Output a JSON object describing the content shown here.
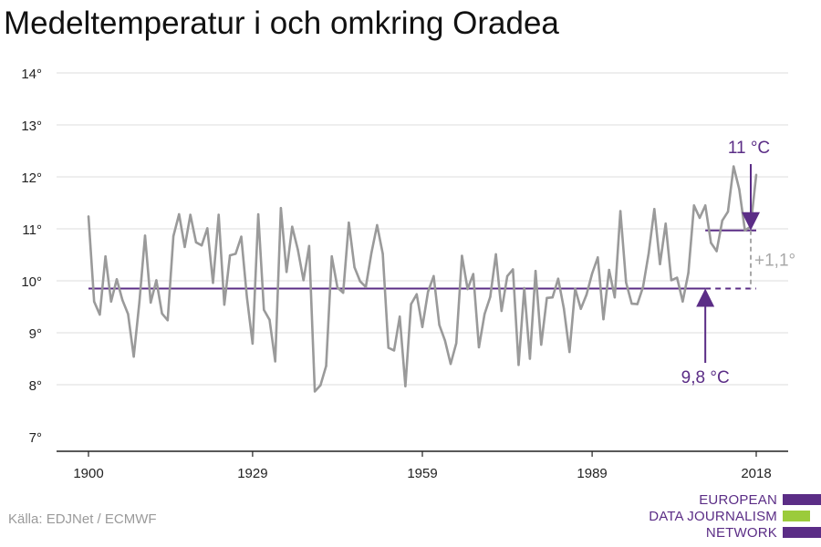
{
  "title": "Medeltemperatur i och omkring Oradea",
  "source": "Källa: EDJNet / ECMWF",
  "logo": {
    "lines": [
      "EUROPEAN",
      "DATA JOURNALISM",
      "NETWORK"
    ]
  },
  "colors": {
    "series": "#9a9a9a",
    "accent": "#5b2d86",
    "green": "#9bcb3b",
    "grid": "#dddddd"
  },
  "chart_data": {
    "type": "line",
    "title": "Medeltemperatur i och omkring Oradea",
    "xlabel": "",
    "ylabel": "",
    "xlim": [
      1900,
      2018
    ],
    "ylim": [
      7,
      14
    ],
    "grid": true,
    "x_ticks": [
      1900,
      1929,
      1959,
      1989,
      2018
    ],
    "y_ticks": [
      7,
      8,
      9,
      10,
      11,
      12,
      13,
      14
    ],
    "y_tick_labels": [
      "7°",
      "8°",
      "9°",
      "10°",
      "11°",
      "12°",
      "13°",
      "14°"
    ],
    "series": [
      {
        "x": [
          1900,
          1901,
          1902,
          1903,
          1904,
          1905,
          1906,
          1907,
          1908,
          1909,
          1910,
          1911,
          1912,
          1913,
          1914,
          1915,
          1916,
          1917,
          1918,
          1919,
          1920,
          1921,
          1922,
          1923,
          1924,
          1925,
          1926,
          1927,
          1928,
          1929,
          1930,
          1931,
          1932,
          1933,
          1934,
          1935,
          1936,
          1937,
          1938,
          1939,
          1940,
          1941,
          1942,
          1943,
          1944,
          1945,
          1946,
          1947,
          1948,
          1949,
          1950,
          1951,
          1952,
          1953,
          1954,
          1955,
          1956,
          1957,
          1958,
          1959,
          1960,
          1961,
          1962,
          1963,
          1964,
          1965,
          1966,
          1967,
          1968,
          1969,
          1970,
          1971,
          1972,
          1973,
          1974,
          1975,
          1976,
          1977,
          1978,
          1979,
          1980,
          1981,
          1982,
          1983,
          1984,
          1985,
          1986,
          1987,
          1988,
          1989,
          1990,
          1991,
          1992,
          1993,
          1994,
          1995,
          1996,
          1997,
          1998,
          1999,
          2000,
          2001,
          2002,
          2003,
          2004,
          2005,
          2006,
          2007,
          2008,
          2009,
          2010,
          2011,
          2012,
          2013,
          2014,
          2015,
          2016,
          2017,
          2018
        ],
        "values": [
          11.24,
          9.6,
          9.35,
          10.47,
          9.6,
          10.03,
          9.63,
          9.36,
          8.54,
          9.59,
          10.87,
          9.58,
          10.01,
          9.37,
          9.24,
          10.86,
          11.28,
          10.65,
          11.27,
          10.74,
          10.68,
          11.01,
          9.96,
          11.27,
          9.54,
          10.49,
          10.52,
          10.85,
          9.68,
          8.79,
          11.28,
          9.44,
          9.25,
          8.45,
          11.4,
          10.17,
          11.04,
          10.6,
          10.01,
          10.67,
          7.87,
          7.99,
          8.36,
          10.47,
          9.87,
          9.77,
          11.12,
          10.26,
          9.99,
          9.88,
          10.54,
          11.07,
          10.52,
          8.71,
          8.66,
          9.31,
          7.97,
          9.55,
          9.74,
          9.11,
          9.79,
          10.09,
          9.15,
          8.85,
          8.4,
          8.8,
          10.48,
          9.84,
          10.13,
          8.72,
          9.36,
          9.69,
          10.51,
          9.42,
          10.09,
          10.22,
          8.38,
          9.86,
          8.5,
          10.19,
          8.77,
          9.67,
          9.68,
          10.04,
          9.47,
          8.63,
          9.85,
          9.46,
          9.73,
          10.14,
          10.45,
          9.26,
          10.21,
          9.68,
          11.34,
          9.97,
          9.56,
          9.55,
          9.88,
          10.53,
          11.38,
          10.32,
          11.1,
          10.01,
          10.06,
          9.6,
          10.15,
          11.45,
          11.21,
          11.45,
          10.73,
          10.57,
          11.16,
          11.33,
          12.2,
          11.76,
          10.97,
          11.04,
          12.04
        ]
      }
    ],
    "reference_lines": [
      {
        "label": "9,8 °C",
        "value": 9.85,
        "from": 1900,
        "to": 2018
      },
      {
        "label": "11 °C",
        "value": 10.97,
        "from": 2009,
        "to": 2018
      }
    ],
    "annotations": {
      "difference": "+1,1°"
    }
  }
}
